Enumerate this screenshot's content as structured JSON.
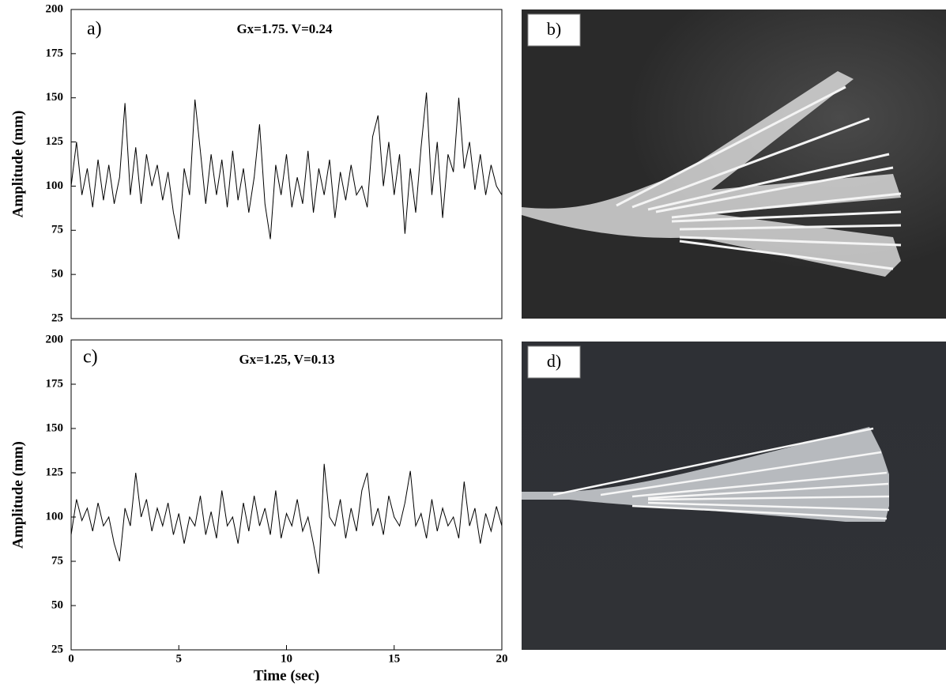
{
  "chart_data": [
    {
      "type": "line",
      "ylabel": "Amplitude (mm)",
      "annotations": [
        "a)",
        "Gx=1.75. V=0.24"
      ],
      "xlim": [
        0,
        20
      ],
      "ylim": [
        25,
        200
      ],
      "yticks": [
        25,
        50,
        75,
        100,
        125,
        150,
        175,
        200
      ],
      "x": [
        0,
        0.25,
        0.5,
        0.75,
        1,
        1.25,
        1.5,
        1.75,
        2,
        2.25,
        2.5,
        2.75,
        3,
        3.25,
        3.5,
        3.75,
        4,
        4.25,
        4.5,
        4.75,
        5,
        5.25,
        5.5,
        5.75,
        6,
        6.25,
        6.5,
        6.75,
        7,
        7.25,
        7.5,
        7.75,
        8,
        8.25,
        8.5,
        8.75,
        9,
        9.25,
        9.5,
        9.75,
        10,
        10.25,
        10.5,
        10.75,
        11,
        11.25,
        11.5,
        11.75,
        12,
        12.25,
        12.5,
        12.75,
        13,
        13.25,
        13.5,
        13.75,
        14,
        14.25,
        14.5,
        14.75,
        15,
        15.25,
        15.5,
        15.75,
        16,
        16.25,
        16.5,
        16.75,
        17,
        17.25,
        17.5,
        17.75,
        18,
        18.25,
        18.5,
        18.75,
        19,
        19.25,
        19.5,
        19.75,
        20
      ],
      "series": [
        {
          "color": "#000000",
          "values": [
            100,
            125,
            95,
            110,
            88,
            115,
            92,
            112,
            90,
            105,
            147,
            95,
            122,
            90,
            118,
            100,
            112,
            92,
            108,
            85,
            70,
            110,
            95,
            149,
            120,
            90,
            118,
            95,
            115,
            88,
            120,
            92,
            110,
            85,
            105,
            135,
            90,
            70,
            112,
            95,
            118,
            88,
            105,
            90,
            120,
            85,
            110,
            95,
            115,
            82,
            108,
            92,
            112,
            95,
            100,
            88,
            128,
            140,
            100,
            125,
            95,
            118,
            73,
            110,
            85,
            122,
            153,
            95,
            125,
            82,
            118,
            108,
            150,
            110,
            125,
            98,
            118,
            95,
            112,
            100,
            95
          ]
        }
      ]
    },
    {
      "type": "line",
      "ylabel": "Amplitude (mm)",
      "xlabel": "Time (sec)",
      "annotations": [
        "c)",
        "Gx=1.25, V=0.13"
      ],
      "xlim": [
        0,
        20
      ],
      "xticks": [
        0,
        5,
        10,
        15,
        20
      ],
      "ylim": [
        25,
        200
      ],
      "yticks": [
        25,
        50,
        75,
        100,
        125,
        150,
        175,
        200
      ],
      "x": [
        0,
        0.25,
        0.5,
        0.75,
        1,
        1.25,
        1.5,
        1.75,
        2,
        2.25,
        2.5,
        2.75,
        3,
        3.25,
        3.5,
        3.75,
        4,
        4.25,
        4.5,
        4.75,
        5,
        5.25,
        5.5,
        5.75,
        6,
        6.25,
        6.5,
        6.75,
        7,
        7.25,
        7.5,
        7.75,
        8,
        8.25,
        8.5,
        8.75,
        9,
        9.25,
        9.5,
        9.75,
        10,
        10.25,
        10.5,
        10.75,
        11,
        11.25,
        11.5,
        11.75,
        12,
        12.25,
        12.5,
        12.75,
        13,
        13.25,
        13.5,
        13.75,
        14,
        14.25,
        14.5,
        14.75,
        15,
        15.25,
        15.5,
        15.75,
        16,
        16.25,
        16.5,
        16.75,
        17,
        17.25,
        17.5,
        17.75,
        18,
        18.25,
        18.5,
        18.75,
        19,
        19.25,
        19.5,
        19.75,
        20
      ],
      "series": [
        {
          "color": "#000000",
          "values": [
            90,
            110,
            98,
            105,
            92,
            108,
            95,
            100,
            85,
            75,
            105,
            95,
            125,
            100,
            110,
            92,
            105,
            95,
            108,
            90,
            102,
            85,
            100,
            95,
            112,
            90,
            103,
            88,
            115,
            95,
            100,
            85,
            108,
            92,
            112,
            95,
            105,
            90,
            115,
            88,
            102,
            95,
            110,
            92,
            100,
            85,
            68,
            130,
            100,
            95,
            110,
            88,
            105,
            92,
            115,
            125,
            95,
            105,
            90,
            112,
            100,
            95,
            108,
            126,
            95,
            102,
            88,
            110,
            92,
            105,
            95,
            100,
            88,
            120,
            95,
            105,
            85,
            102,
            92,
            106,
            95
          ]
        }
      ]
    }
  ],
  "images": [
    {
      "label": "b)"
    },
    {
      "label": "d)"
    }
  ]
}
